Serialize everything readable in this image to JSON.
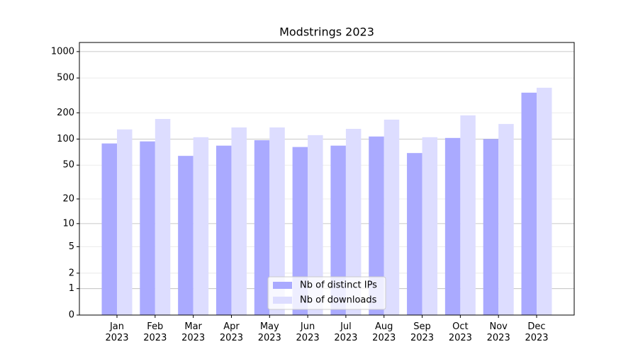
{
  "chart_data": {
    "type": "bar",
    "title": "Modstrings 2023",
    "categories": [
      "Jan\n2023",
      "Feb\n2023",
      "Mar\n2023",
      "Apr\n2023",
      "May\n2023",
      "Jun\n2023",
      "Jul\n2023",
      "Aug\n2023",
      "Sep\n2023",
      "Oct\n2023",
      "Nov\n2023",
      "Dec\n2023"
    ],
    "series": [
      {
        "name": "Nb of distinct IPs",
        "color": "#aaaaff",
        "values": [
          89,
          94,
          64,
          84,
          97,
          81,
          84,
          107,
          69,
          103,
          100,
          340
        ]
      },
      {
        "name": "Nb of downloads",
        "color": "#ddddff",
        "values": [
          129,
          170,
          105,
          136,
          136,
          111,
          131,
          167,
          105,
          187,
          149,
          387
        ]
      }
    ],
    "yscale": "log1p",
    "ylim": [
      0,
      1270
    ],
    "yticks": [
      0,
      1,
      2,
      5,
      10,
      20,
      50,
      100,
      200,
      500,
      1000
    ],
    "grid": true,
    "legend": "lower center"
  }
}
